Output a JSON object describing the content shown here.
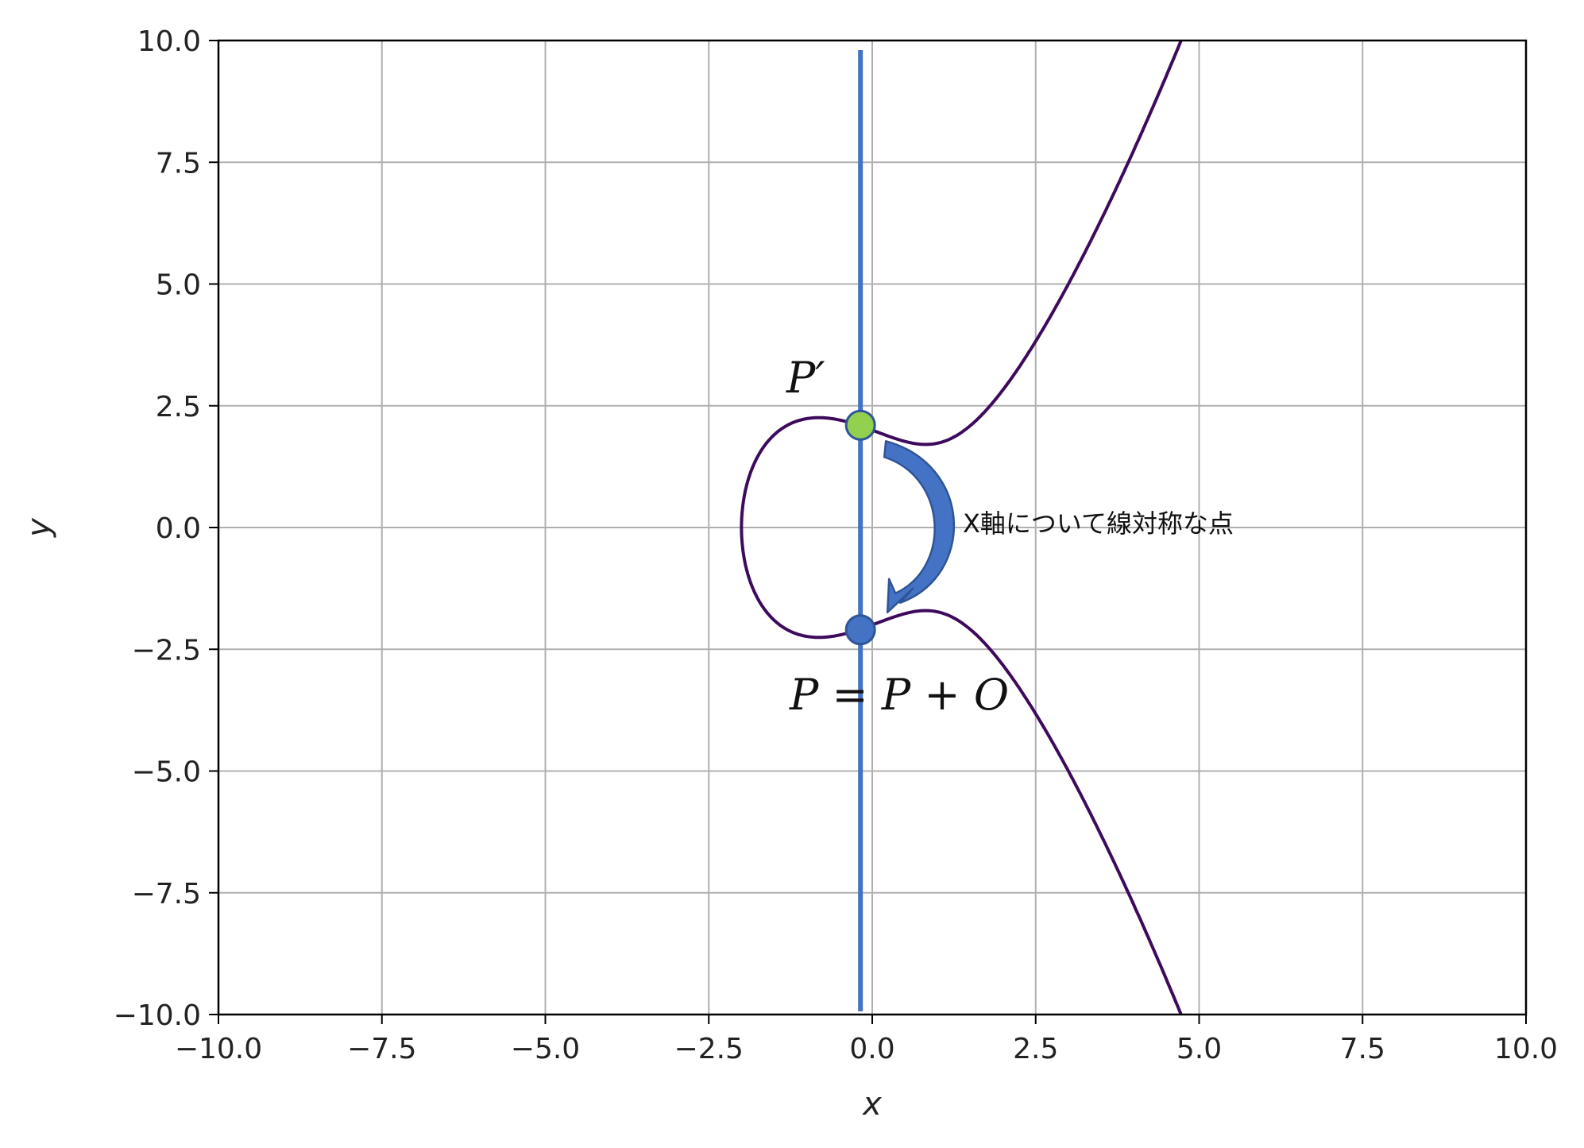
{
  "chart_data": {
    "type": "line",
    "title": "",
    "xlabel": "x",
    "ylabel": "y",
    "xlim": [
      -10,
      10
    ],
    "ylim": [
      -10,
      10
    ],
    "grid": true,
    "xticks": [
      -10,
      -7.5,
      -5,
      -2.5,
      0,
      2.5,
      5,
      7.5,
      10
    ],
    "yticks": [
      -10,
      -7.5,
      -5,
      -2.5,
      0,
      2.5,
      5,
      7.5,
      10
    ],
    "xtick_labels": [
      "−10.0",
      "−7.5",
      "−5.0",
      "−2.5",
      "0.0",
      "2.5",
      "5.0",
      "7.5",
      "10.0"
    ],
    "ytick_labels": [
      "−10.0",
      "−7.5",
      "−5.0",
      "−2.5",
      "0.0",
      "2.5",
      "5.0",
      "7.5",
      "10.0"
    ],
    "curve": {
      "equation": "y^2 = x^3 - 2x + 4",
      "a": -2,
      "b": 4,
      "color": "#3d0a5c"
    },
    "vertical_line": {
      "x": -0.18,
      "color": "#4472c4"
    },
    "points": [
      {
        "label": "P′",
        "x": -0.18,
        "y": 2.1,
        "color": "#92d050"
      },
      {
        "label": "P = P + O",
        "x": -0.18,
        "y": -2.1,
        "color": "#4472c4"
      }
    ],
    "annotation": {
      "text": "X軸について線対称な点",
      "arrow_color": "#2f5597"
    }
  }
}
